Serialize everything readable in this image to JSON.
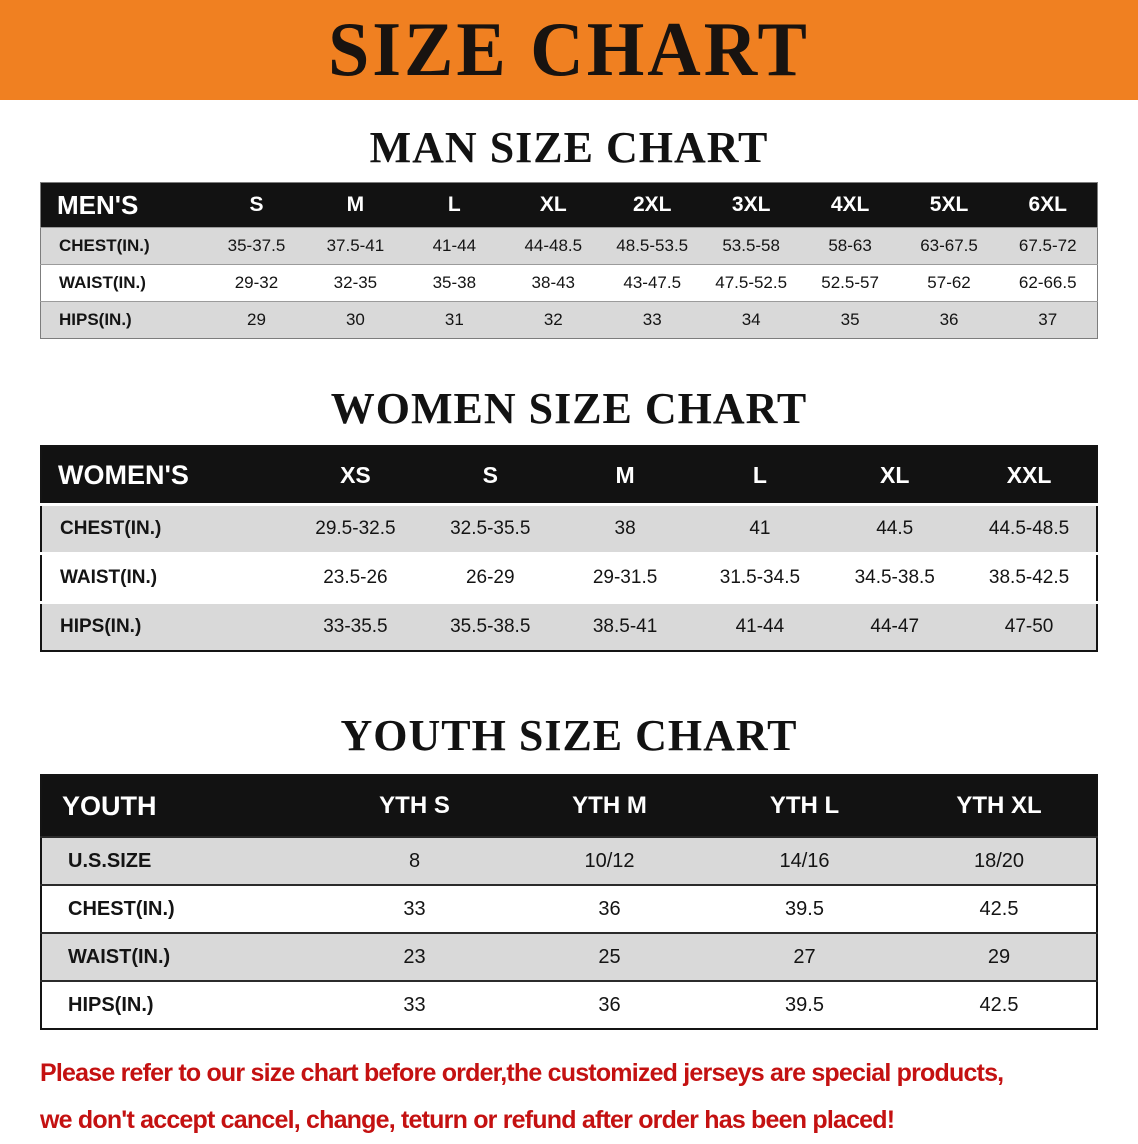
{
  "banner": {
    "title": "SIZE CHART"
  },
  "colors": {
    "banner_bg": "#f08021",
    "header_bg": "#121212",
    "stripe": "#d9d9d9",
    "footer_red": "#c41111"
  },
  "sections": {
    "men": {
      "title": "MAN SIZE CHART"
    },
    "women": {
      "title": "WOMEN SIZE CHART"
    },
    "youth": {
      "title": "YOUTH SIZE CHART"
    }
  },
  "tables": {
    "men": {
      "header": [
        "MEN'S",
        "S",
        "M",
        "L",
        "XL",
        "2XL",
        "3XL",
        "4XL",
        "5XL",
        "6XL"
      ],
      "rows": [
        [
          "CHEST(IN.)",
          "35-37.5",
          "37.5-41",
          "41-44",
          "44-48.5",
          "48.5-53.5",
          "53.5-58",
          "58-63",
          "63-67.5",
          "67.5-72"
        ],
        [
          "WAIST(IN.)",
          "29-32",
          "32-35",
          "35-38",
          "38-43",
          "43-47.5",
          "47.5-52.5",
          "52.5-57",
          "57-62",
          "62-66.5"
        ],
        [
          "HIPS(IN.)",
          "29",
          "30",
          "31",
          "32",
          "33",
          "34",
          "35",
          "36",
          "37"
        ]
      ]
    },
    "women": {
      "header": [
        "WOMEN'S",
        "XS",
        "S",
        "M",
        "L",
        "XL",
        "XXL"
      ],
      "rows": [
        [
          "CHEST(IN.)",
          "29.5-32.5",
          "32.5-35.5",
          "38",
          "41",
          "44.5",
          "44.5-48.5"
        ],
        [
          "WAIST(IN.)",
          "23.5-26",
          "26-29",
          "29-31.5",
          "31.5-34.5",
          "34.5-38.5",
          "38.5-42.5"
        ],
        [
          "HIPS(IN.)",
          "33-35.5",
          "35.5-38.5",
          "38.5-41",
          "41-44",
          "44-47",
          "47-50"
        ]
      ]
    },
    "youth": {
      "header": [
        "YOUTH",
        "YTH S",
        "YTH M",
        "YTH L",
        "YTH XL"
      ],
      "rows": [
        [
          "U.S.SIZE",
          "8",
          "10/12",
          "14/16",
          "18/20"
        ],
        [
          "CHEST(IN.)",
          "33",
          "36",
          "39.5",
          "42.5"
        ],
        [
          "WAIST(IN.)",
          "23",
          "25",
          "27",
          "29"
        ],
        [
          "HIPS(IN.)",
          "33",
          "36",
          "39.5",
          "42.5"
        ]
      ]
    }
  },
  "footer": {
    "line1": "Please refer to our size chart before order,the customized jerseys are special products,",
    "line2": "we don't accept cancel, change, teturn or refund after order has been placed!"
  }
}
